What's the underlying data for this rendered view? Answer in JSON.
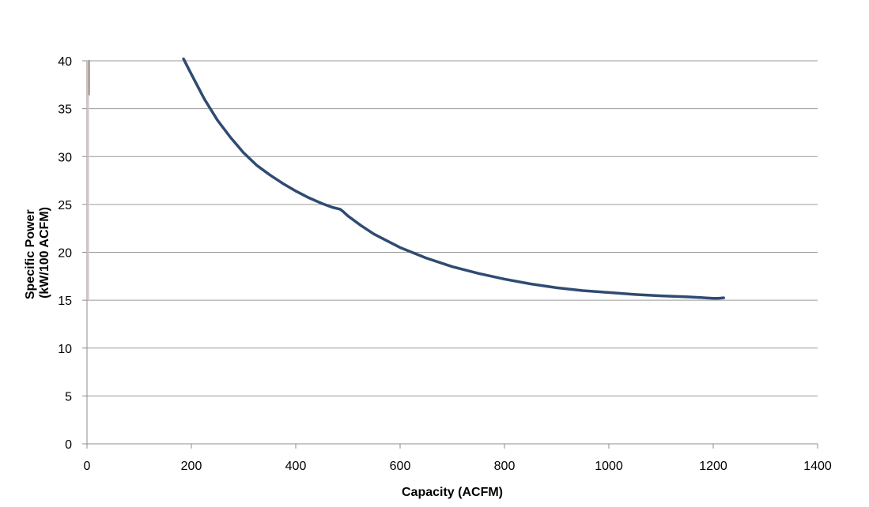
{
  "chart_data": {
    "type": "line",
    "title": "",
    "xlabel": "Capacity (ACFM)",
    "ylabel_lines": [
      "Specific Power",
      "(kW/100 ACFM)"
    ],
    "xlim": [
      0,
      1400
    ],
    "ylim": [
      0,
      40
    ],
    "xticks": [
      0,
      200,
      400,
      600,
      800,
      1000,
      1200,
      1400
    ],
    "yticks": [
      0,
      5,
      10,
      15,
      20,
      25,
      30,
      35,
      40
    ],
    "grid": "horizontal",
    "legend": "none",
    "colors": {
      "main_series": "#2f4b72",
      "vertical_line_a": "#d8c6cf",
      "vertical_line_b": "#b29b8c",
      "gridline": "#9a9a9a",
      "axis": "#8c8c8c"
    },
    "series": [
      {
        "color": "#2f4b72",
        "x": [
          185,
          200,
          225,
          250,
          275,
          300,
          325,
          350,
          375,
          400,
          425,
          450,
          470,
          485,
          490,
          500,
          525,
          550,
          600,
          650,
          700,
          750,
          800,
          850,
          900,
          950,
          1000,
          1050,
          1100,
          1150,
          1200,
          1210,
          1220
        ],
        "y": [
          40.2,
          38.6,
          36.0,
          33.8,
          32.0,
          30.4,
          29.1,
          28.1,
          27.2,
          26.4,
          25.7,
          25.1,
          24.7,
          24.5,
          24.3,
          23.8,
          22.8,
          21.9,
          20.5,
          19.4,
          18.5,
          17.8,
          17.2,
          16.7,
          16.3,
          16.0,
          15.8,
          15.6,
          15.45,
          15.35,
          15.2,
          15.2,
          15.25
        ]
      },
      {
        "color": "#d8c6cf",
        "x": [
          2,
          2
        ],
        "y": [
          15.1,
          40
        ]
      },
      {
        "color": "#b29b8c",
        "x": [
          4,
          4
        ],
        "y": [
          36.5,
          40
        ]
      }
    ]
  }
}
